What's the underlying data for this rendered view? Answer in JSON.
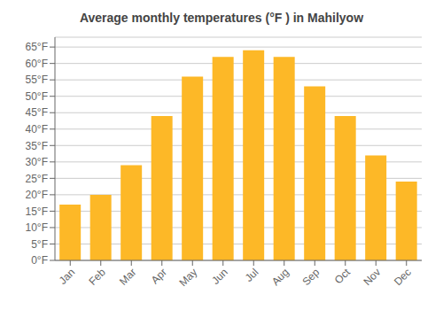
{
  "chart_data": {
    "type": "bar",
    "title": "Average monthly temperatures (°F ) in Mahilyow",
    "categories": [
      "Jan",
      "Feb",
      "Mar",
      "Apr",
      "May",
      "Jun",
      "Jul",
      "Aug",
      "Sep",
      "Oct",
      "Nov",
      "Dec"
    ],
    "values": [
      17,
      20,
      29,
      44,
      56,
      62,
      64,
      62,
      53,
      44,
      32,
      24
    ],
    "color": "#FDB827",
    "ylim": [
      0,
      68
    ],
    "yticks": [
      {
        "value": 0,
        "label": "0°F"
      },
      {
        "value": 5,
        "label": "5°F"
      },
      {
        "value": 10,
        "label": "10°F"
      },
      {
        "value": 15,
        "label": "15°F"
      },
      {
        "value": 20,
        "label": "20°F"
      },
      {
        "value": 25,
        "label": "25°F"
      },
      {
        "value": 30,
        "label": "30°F"
      },
      {
        "value": 35,
        "label": "35°F"
      },
      {
        "value": 40,
        "label": "40°F"
      },
      {
        "value": 45,
        "label": "45°F"
      },
      {
        "value": 50,
        "label": "50°F"
      },
      {
        "value": 55,
        "label": "55°F"
      },
      {
        "value": 60,
        "label": "60°F"
      },
      {
        "value": 65,
        "label": "65°F"
      }
    ],
    "grid": true
  }
}
